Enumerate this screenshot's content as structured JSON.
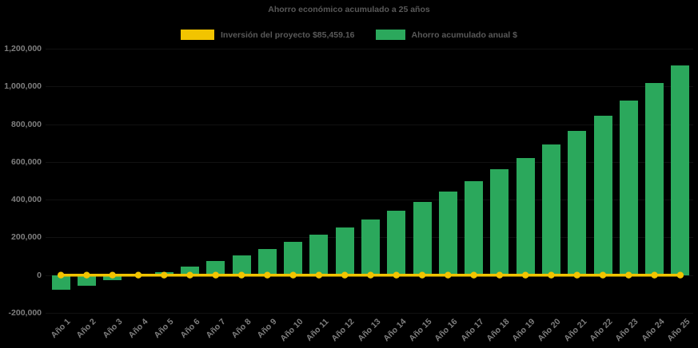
{
  "title": "Ahorro económico acumulado a 25 años",
  "legend": {
    "investment_label": "Inversión del proyecto $85,459.16",
    "savings_label": "Ahorro acumulado anual $"
  },
  "colors": {
    "background": "#000000",
    "bar_green": "#2BA85C",
    "line_yellow": "#F2C400",
    "title_text": "#595959",
    "axis_text": "#7F7F7F"
  },
  "chart_data": {
    "type": "bar",
    "title": "Ahorro económico acumulado a 25 años",
    "categories": [
      "Año 1",
      "Año 2",
      "Año 3",
      "Año 4",
      "Año 5",
      "Año 6",
      "Año 7",
      "Año 8",
      "Año 9",
      "Año 10",
      "Año 11",
      "Año 12",
      "Año 13",
      "Año 14",
      "Año 15",
      "Año 16",
      "Año 17",
      "Año 18",
      "Año 19",
      "Año 20",
      "Año 21",
      "Año 22",
      "Año 23",
      "Año 24",
      "Año 25"
    ],
    "series": [
      {
        "name": "Inversión del proyecto $85,459.16",
        "type": "line",
        "color": "#F2C400",
        "marker": "circle",
        "constant_value": 85459.16,
        "rendered_level": 0
      },
      {
        "name": "Ahorro acumulado anual $",
        "type": "bar",
        "color": "#2BA85C",
        "values": [
          -76000,
          -56000,
          -28000,
          -4000,
          16000,
          47000,
          76000,
          106000,
          140000,
          178000,
          215000,
          254000,
          296000,
          340000,
          389000,
          445000,
          498000,
          560000,
          622000,
          692000,
          766000,
          843000,
          925000,
          1020000,
          1110000
        ]
      }
    ],
    "ylim": [
      -200000,
      1200000
    ],
    "ytick_interval": 200000,
    "ytick_labels": [
      "1,200,000",
      "1,000,000",
      "800,000",
      "600,000",
      "400,000",
      "200,000",
      "0",
      "-200,000"
    ],
    "xlabel": "",
    "ylabel": "",
    "legend_position": "top",
    "grid": false,
    "background": "black"
  }
}
